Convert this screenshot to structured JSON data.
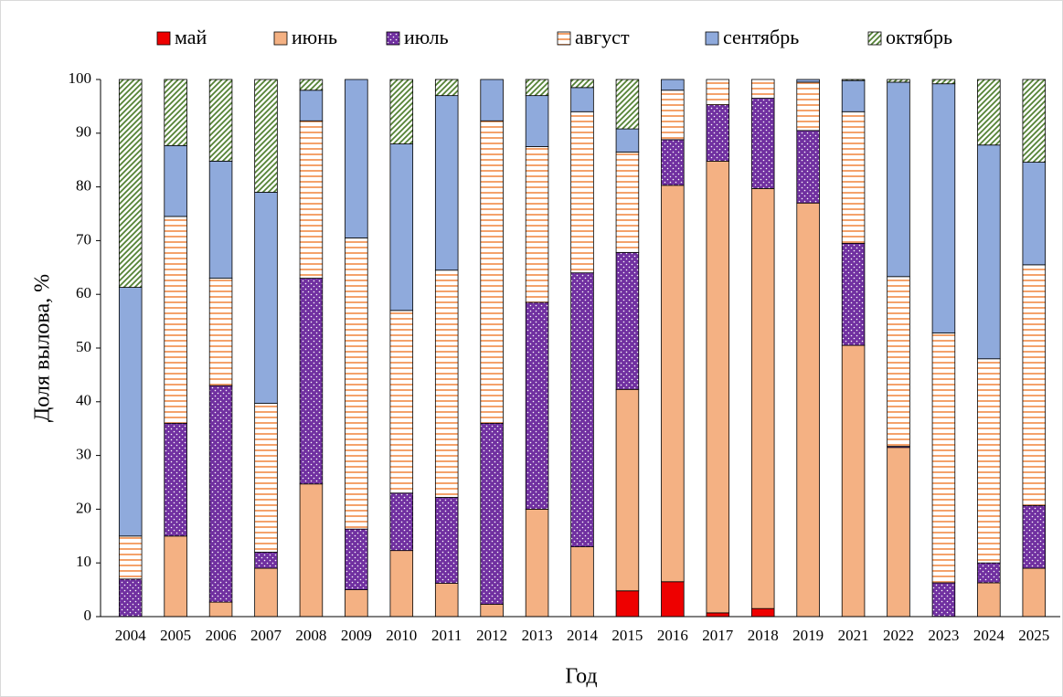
{
  "chart_data": {
    "type": "stacked_bar",
    "xlabel": "Год",
    "ylabel": "Доля вылова, %",
    "categories": [
      "2004",
      "2005",
      "2006",
      "2007",
      "2008",
      "2009",
      "2010",
      "2011",
      "2012",
      "2013",
      "2014",
      "2015",
      "2016",
      "2017",
      "2018",
      "2019",
      "2021",
      "2022",
      "2023",
      "2024",
      "2025"
    ],
    "series": [
      {
        "name": "май",
        "color": "#ee0000",
        "values": [
          0,
          0,
          0,
          0,
          0,
          0,
          0,
          0,
          0,
          0,
          0,
          4.8,
          6.5,
          0.7,
          1.5,
          0,
          0,
          0,
          0,
          0,
          0
        ]
      },
      {
        "name": "июнь",
        "color": "#f4b183",
        "values": [
          0,
          15,
          2.7,
          9,
          24.7,
          5,
          12.3,
          6.2,
          2.3,
          20,
          13,
          37.5,
          73.8,
          84.1,
          78.2,
          77,
          50.5,
          31.5,
          0,
          6.3,
          9
        ]
      },
      {
        "name": "июль",
        "color": "#7030a0",
        "values": [
          7,
          21,
          40.3,
          3,
          38.3,
          11.3,
          10.7,
          16,
          33.7,
          38.5,
          51,
          25.5,
          8.5,
          10.5,
          16.8,
          13.5,
          19,
          0.2,
          6.3,
          3.7,
          11.7
        ]
      },
      {
        "name": "август",
        "color": "#f4a26b",
        "values": [
          8,
          38.5,
          20,
          27.7,
          29.3,
          54.2,
          34,
          42.3,
          56.3,
          29,
          30,
          18.7,
          9.2,
          4.7,
          3.5,
          9,
          24.5,
          31.6,
          46.5,
          38,
          44.8
        ]
      },
      {
        "name": "сентябрь",
        "color": "#8faadc",
        "values": [
          46.3,
          13.2,
          21.8,
          39.3,
          5.7,
          29.5,
          31,
          32.5,
          7.7,
          9.5,
          4.5,
          4.3,
          2,
          0,
          0,
          0.5,
          5.8,
          36.2,
          46.4,
          39.8,
          19.1
        ]
      },
      {
        "name": "октябрь",
        "color": "#548235",
        "values": [
          38.7,
          12.3,
          15.2,
          21,
          2,
          0,
          12,
          3,
          0,
          3,
          1.5,
          9.2,
          0,
          0,
          0,
          0,
          0.2,
          0.5,
          0.8,
          12.2,
          15.4
        ]
      }
    ],
    "ylim": [
      0,
      100
    ],
    "yticks": [
      0,
      10,
      20,
      30,
      40,
      50,
      60,
      70,
      80,
      90,
      100
    ]
  }
}
